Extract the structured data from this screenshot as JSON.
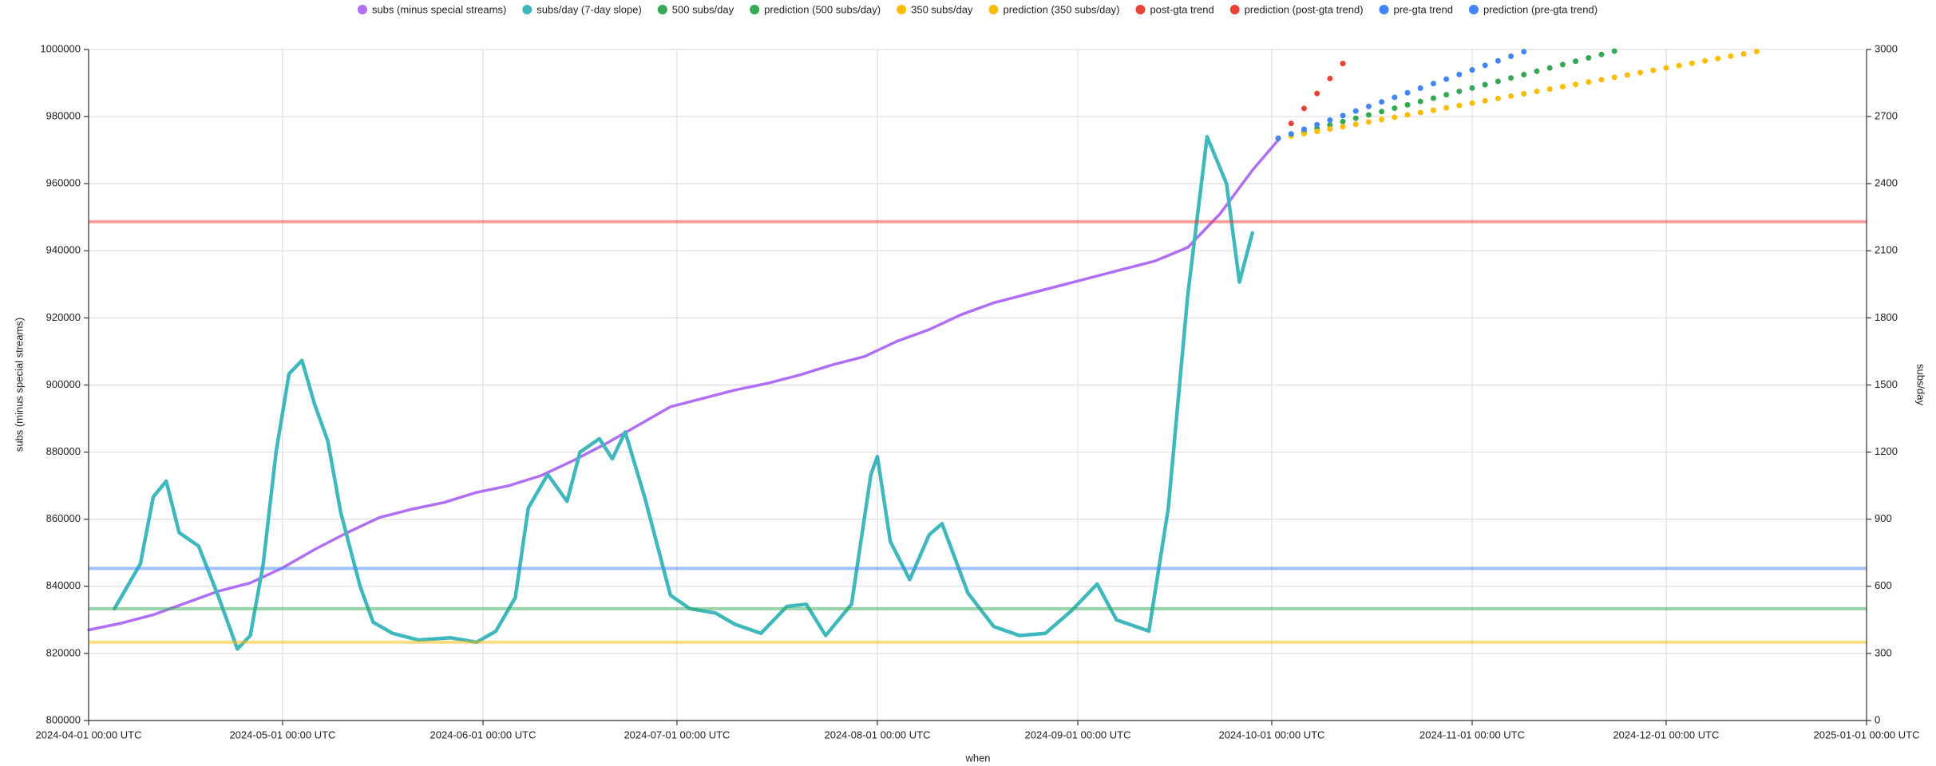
{
  "chart_data": {
    "type": "line",
    "x_label": "when",
    "y_label": "subs (minus special streams)",
    "y2_label": "subs/day",
    "grid": true,
    "legend": "top",
    "xlim": [
      "2024-04-01",
      "2025-01-01"
    ],
    "xticks": [
      {
        "value": "2024-04-01",
        "label": "2024-04-01 00:00 UTC"
      },
      {
        "value": "2024-05-01",
        "label": "2024-05-01 00:00 UTC"
      },
      {
        "value": "2024-06-01",
        "label": "2024-06-01 00:00 UTC"
      },
      {
        "value": "2024-07-01",
        "label": "2024-07-01 00:00 UTC"
      },
      {
        "value": "2024-08-01",
        "label": "2024-08-01 00:00 UTC"
      },
      {
        "value": "2024-09-01",
        "label": "2024-09-01 00:00 UTC"
      },
      {
        "value": "2024-10-01",
        "label": "2024-10-01 00:00 UTC"
      },
      {
        "value": "2024-11-01",
        "label": "2024-11-01 00:00 UTC"
      },
      {
        "value": "2024-12-01",
        "label": "2024-12-01 00:00 UTC"
      },
      {
        "value": "2025-01-01",
        "label": "2025-01-01 00:00 UTC"
      }
    ],
    "ylim": [
      800000,
      1000000
    ],
    "yticks": [
      800000,
      820000,
      840000,
      860000,
      880000,
      900000,
      920000,
      940000,
      960000,
      980000,
      1000000
    ],
    "y2lim": [
      0,
      3000
    ],
    "y2ticks": [
      0,
      300,
      600,
      900,
      1200,
      1500,
      1800,
      2100,
      2400,
      2700,
      3000
    ],
    "series": [
      {
        "name": "subs (minus special streams)",
        "color": "#b06ef5",
        "style": "line",
        "x": [
          "2024-04-01",
          "2024-04-06",
          "2024-04-11",
          "2024-04-16",
          "2024-04-21",
          "2024-04-26",
          "2024-05-01",
          "2024-05-06",
          "2024-05-11",
          "2024-05-16",
          "2024-05-21",
          "2024-05-26",
          "2024-05-31",
          "2024-06-05",
          "2024-06-10",
          "2024-06-15",
          "2024-06-20",
          "2024-06-25",
          "2024-06-30",
          "2024-07-05",
          "2024-07-10",
          "2024-07-15",
          "2024-07-20",
          "2024-07-25",
          "2024-07-30",
          "2024-08-04",
          "2024-08-09",
          "2024-08-14",
          "2024-08-19",
          "2024-08-24",
          "2024-08-29",
          "2024-09-03",
          "2024-09-08",
          "2024-09-13",
          "2024-09-18",
          "2024-09-23",
          "2024-09-28",
          "2024-10-02"
        ],
        "values": [
          827000,
          829000,
          831500,
          835000,
          838500,
          841000,
          845500,
          851000,
          856000,
          860500,
          863000,
          865000,
          868000,
          870000,
          873000,
          877500,
          882500,
          888000,
          893500,
          896000,
          898500,
          900500,
          903000,
          906000,
          908500,
          913000,
          916500,
          921000,
          924500,
          927000,
          929500,
          932000,
          934500,
          937000,
          941000,
          951000,
          964000,
          973000
        ]
      },
      {
        "name": "subs/day (7-day slope)",
        "color": "#3fb8bd",
        "style": "line",
        "axis": "y2",
        "x": [
          "2024-04-05",
          "2024-04-09",
          "2024-04-11",
          "2024-04-13",
          "2024-04-15",
          "2024-04-18",
          "2024-04-21",
          "2024-04-24",
          "2024-04-26",
          "2024-04-28",
          "2024-04-30",
          "2024-05-02",
          "2024-05-04",
          "2024-05-06",
          "2024-05-08",
          "2024-05-10",
          "2024-05-13",
          "2024-05-15",
          "2024-05-18",
          "2024-05-22",
          "2024-05-27",
          "2024-05-31",
          "2024-06-03",
          "2024-06-06",
          "2024-06-08",
          "2024-06-11",
          "2024-06-14",
          "2024-06-16",
          "2024-06-19",
          "2024-06-21",
          "2024-06-23",
          "2024-06-26",
          "2024-06-30",
          "2024-07-03",
          "2024-07-07",
          "2024-07-10",
          "2024-07-14",
          "2024-07-18",
          "2024-07-21",
          "2024-07-24",
          "2024-07-28",
          "2024-07-31",
          "2024-08-01",
          "2024-08-03",
          "2024-08-06",
          "2024-08-09",
          "2024-08-11",
          "2024-08-15",
          "2024-08-19",
          "2024-08-23",
          "2024-08-27",
          "2024-08-31",
          "2024-09-04",
          "2024-09-07",
          "2024-09-12",
          "2024-09-15",
          "2024-09-18",
          "2024-09-21",
          "2024-09-24",
          "2024-09-26",
          "2024-09-28"
        ],
        "values": [
          500,
          700,
          1000,
          1070,
          840,
          780,
          560,
          320,
          380,
          700,
          1200,
          1550,
          1610,
          1410,
          1250,
          930,
          600,
          440,
          390,
          360,
          370,
          350,
          400,
          550,
          950,
          1100,
          980,
          1200,
          1260,
          1170,
          1290,
          1000,
          560,
          500,
          480,
          430,
          390,
          510,
          520,
          380,
          520,
          1100,
          1180,
          800,
          630,
          830,
          880,
          570,
          420,
          380,
          390,
          490,
          610,
          450,
          400,
          950,
          1900,
          2610,
          2400,
          1960,
          2180
        ]
      },
      {
        "name": "500 subs/day",
        "color": "#34a853",
        "style": "hline",
        "axis": "y2",
        "values": [
          500
        ]
      },
      {
        "name": "prediction (500 subs/day)",
        "color": "#34a853",
        "style": "dots",
        "x": [
          "2024-10-02",
          "2024-10-04",
          "2024-10-06",
          "2024-10-08",
          "2024-10-10",
          "2024-10-12",
          "2024-10-14",
          "2024-10-16",
          "2024-10-18",
          "2024-10-20",
          "2024-10-22",
          "2024-10-24",
          "2024-10-26",
          "2024-10-28",
          "2024-10-30",
          "2024-11-01",
          "2024-11-03",
          "2024-11-05",
          "2024-11-07",
          "2024-11-09",
          "2024-11-11",
          "2024-11-13",
          "2024-11-15",
          "2024-11-17",
          "2024-11-19",
          "2024-11-21",
          "2024-11-23"
        ],
        "values": [
          973500,
          974500,
          975500,
          976500,
          977500,
          978500,
          979500,
          980500,
          981500,
          982500,
          983500,
          984500,
          985500,
          986500,
          987500,
          988500,
          989500,
          990500,
          991500,
          992500,
          993500,
          994500,
          995500,
          996500,
          997500,
          998500,
          999500
        ]
      },
      {
        "name": "350 subs/day",
        "color": "#fbbc05",
        "style": "hline",
        "axis": "y2",
        "values": [
          350
        ]
      },
      {
        "name": "prediction (350 subs/day)",
        "color": "#fbbc05",
        "style": "dots",
        "x": [
          "2024-10-02",
          "2024-10-04",
          "2024-10-06",
          "2024-10-08",
          "2024-10-10",
          "2024-10-12",
          "2024-10-14",
          "2024-10-16",
          "2024-10-18",
          "2024-10-20",
          "2024-10-22",
          "2024-10-24",
          "2024-10-26",
          "2024-10-28",
          "2024-10-30",
          "2024-11-01",
          "2024-11-03",
          "2024-11-05",
          "2024-11-07",
          "2024-11-09",
          "2024-11-11",
          "2024-11-13",
          "2024-11-15",
          "2024-11-17",
          "2024-11-19",
          "2024-11-21",
          "2024-11-23",
          "2024-11-25",
          "2024-11-27",
          "2024-11-29",
          "2024-12-01",
          "2024-12-03",
          "2024-12-05",
          "2024-12-07",
          "2024-12-09",
          "2024-12-11",
          "2024-12-13",
          "2024-12-15"
        ],
        "values": [
          973500,
          974200,
          974900,
          975600,
          976300,
          977000,
          977700,
          978400,
          979100,
          979800,
          980500,
          981200,
          981900,
          982600,
          983300,
          984000,
          984700,
          985400,
          986100,
          986800,
          987500,
          988200,
          988900,
          989600,
          990300,
          991000,
          991700,
          992400,
          993100,
          993800,
          994500,
          995200,
          995900,
          996600,
          997300,
          998000,
          998700,
          999400
        ]
      },
      {
        "name": "post-gta trend",
        "color": "#ea4335",
        "style": "hline",
        "axis": "y2",
        "values": [
          2230
        ]
      },
      {
        "name": "prediction (post-gta trend)",
        "color": "#ea4335",
        "style": "dots",
        "x": [
          "2024-10-02",
          "2024-10-04",
          "2024-10-06",
          "2024-10-08",
          "2024-10-10",
          "2024-10-12"
        ],
        "values": [
          973500,
          977960,
          982420,
          986880,
          991340,
          995800
        ]
      },
      {
        "name": "pre-gta trend",
        "color": "#4285f4",
        "style": "hline",
        "axis": "y2",
        "values": [
          680
        ]
      },
      {
        "name": "prediction (pre-gta trend)",
        "color": "#4285f4",
        "style": "dots",
        "x": [
          "2024-10-02",
          "2024-10-04",
          "2024-10-06",
          "2024-10-08",
          "2024-10-10",
          "2024-10-12",
          "2024-10-14",
          "2024-10-16",
          "2024-10-18",
          "2024-10-20",
          "2024-10-22",
          "2024-10-24",
          "2024-10-26",
          "2024-10-28",
          "2024-10-30",
          "2024-11-01",
          "2024-11-03",
          "2024-11-05",
          "2024-11-07",
          "2024-11-09"
        ],
        "values": [
          973500,
          974860,
          976220,
          977580,
          978940,
          980300,
          981660,
          983020,
          984380,
          985740,
          987100,
          988460,
          989820,
          991180,
          992540,
          993900,
          995260,
          996620,
          997980,
          999340
        ]
      }
    ]
  }
}
